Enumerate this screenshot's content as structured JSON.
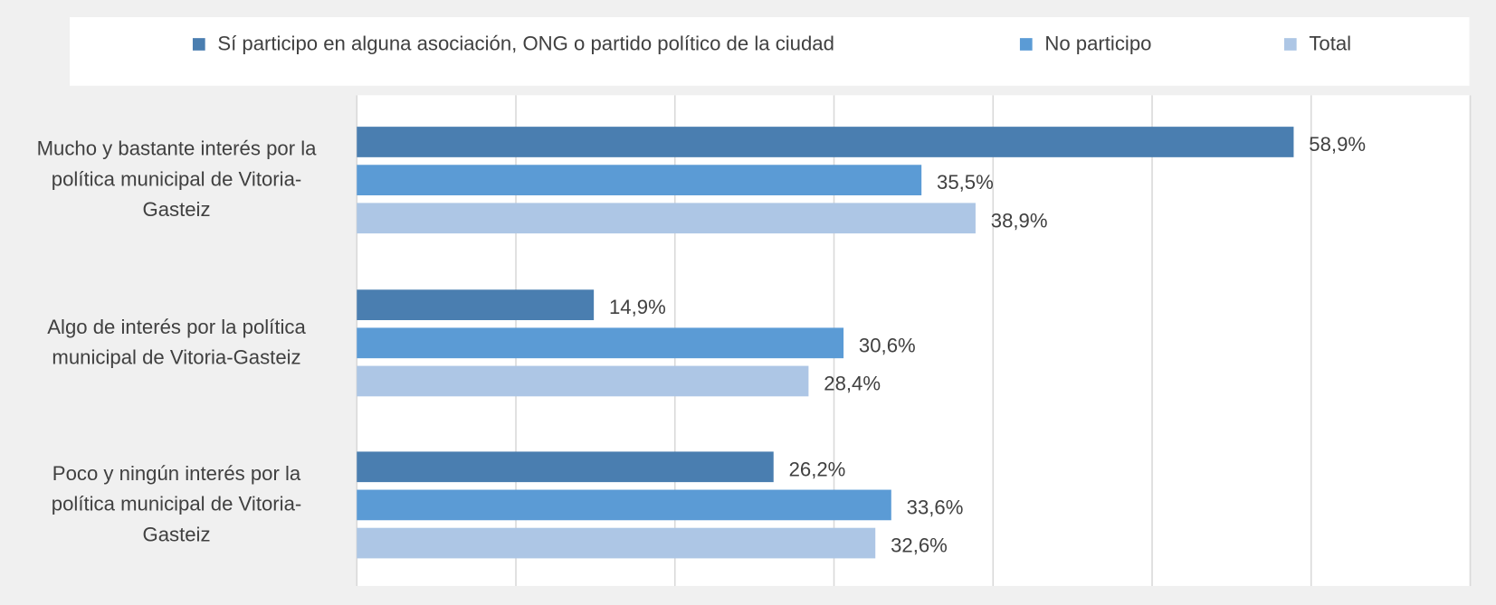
{
  "chart_data": {
    "type": "hbar",
    "categories": [
      "Mucho y bastante interés por la política municipal de Vitoria-Gasteiz",
      "Algo de interés por la política municipal de Vitoria-Gasteiz",
      "Poco y ningún interés por la política municipal de Vitoria-Gasteiz"
    ],
    "series": [
      {
        "name": "Sí participo en alguna asociación, ONG o partido político de la ciudad",
        "color": "#4a7eb0",
        "values": [
          58.9,
          14.9,
          26.2
        ],
        "value_labels": [
          "58,9%",
          "14,9%",
          "26,2%"
        ]
      },
      {
        "name": "No participo",
        "color": "#5b9bd5",
        "values": [
          35.5,
          30.6,
          33.6
        ],
        "value_labels": [
          "35,5%",
          "30,6%",
          "33,6%"
        ]
      },
      {
        "name": "Total",
        "color": "#adc6e5",
        "values": [
          38.9,
          28.4,
          32.6
        ],
        "value_labels": [
          "38,9%",
          "28,4%",
          "32,6%"
        ]
      }
    ],
    "xlim": [
      0,
      70
    ],
    "xticks": [
      0,
      10,
      20,
      30,
      40,
      50,
      60,
      70
    ],
    "grid": true,
    "legend": "top"
  }
}
